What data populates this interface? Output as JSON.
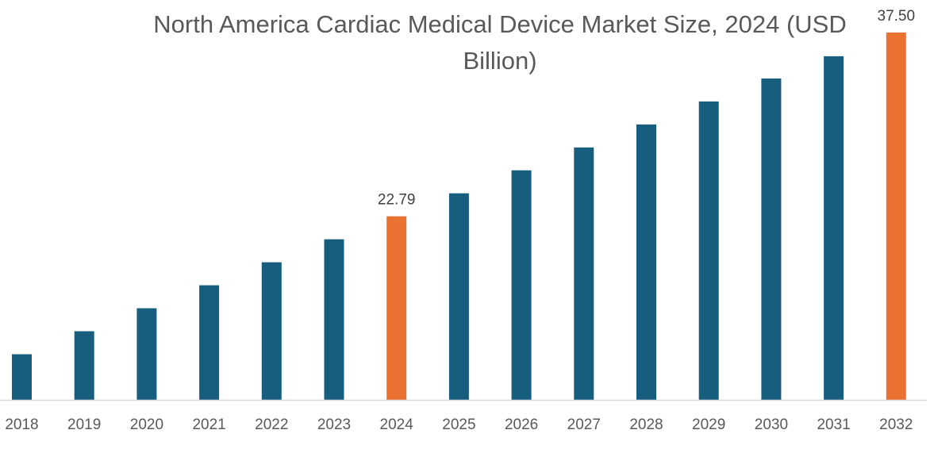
{
  "chart_data": {
    "type": "bar",
    "title": "North America Cardiac Medical Device Market Size, 2024 (USD Billion)",
    "xlabel": "",
    "ylabel": "",
    "categories": [
      "2018",
      "2019",
      "2020",
      "2021",
      "2022",
      "2023",
      "2024",
      "2025",
      "2026",
      "2027",
      "2028",
      "2029",
      "2030",
      "2031",
      "2032"
    ],
    "values": [
      11.75,
      13.59,
      15.43,
      17.27,
      19.11,
      20.95,
      22.79,
      24.63,
      26.47,
      28.3,
      30.14,
      31.98,
      33.82,
      35.6,
      37.5
    ],
    "data_labels": {
      "2024": "22.79",
      "2032": "37.50"
    },
    "highlight_categories": [
      "2024",
      "2032"
    ],
    "ylim": [
      8.1,
      40.1
    ],
    "grid": false,
    "legend": "none",
    "colors": {
      "default": "#175E7E",
      "highlight": "#E97132",
      "axis": "#D9D9D9"
    }
  }
}
